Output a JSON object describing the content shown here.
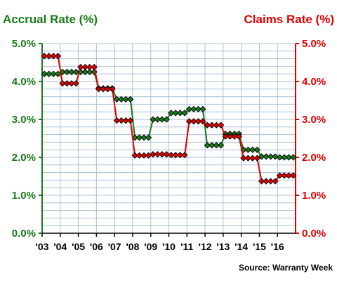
{
  "chart_data": {
    "type": "line",
    "title_left": "Accrual Rate (%)",
    "title_right": "Claims Rate (%)",
    "source": "Source: Warranty Week",
    "x_labels": [
      "'03",
      "'04",
      "'05",
      "'06",
      "'07",
      "'08",
      "'09",
      "'10",
      "'11",
      "'12",
      "'13",
      "'14",
      "'15",
      "'16"
    ],
    "y_ticks_left": [
      "0.0%",
      "1.0%",
      "2.0%",
      "3.0%",
      "4.0%",
      "5.0%"
    ],
    "y_ticks_right": [
      "0.0%",
      "1.0%",
      "2.0%",
      "3.0%",
      "4.0%",
      "5.0%"
    ],
    "ylim": [
      0,
      5
    ],
    "grid": true,
    "points_per_year": 4,
    "series": [
      {
        "name": "Accrual Rate (%)",
        "axis": "left",
        "color": "#1a7a1a",
        "values": [
          4.2,
          4.2,
          4.2,
          4.2,
          4.25,
          4.25,
          4.25,
          4.25,
          4.25,
          4.25,
          4.25,
          4.25,
          3.82,
          3.82,
          3.82,
          3.82,
          3.53,
          3.53,
          3.53,
          3.53,
          2.52,
          2.52,
          2.52,
          2.52,
          3.0,
          3.0,
          3.0,
          3.0,
          3.17,
          3.17,
          3.17,
          3.17,
          3.27,
          3.27,
          3.27,
          3.27,
          2.32,
          2.32,
          2.32,
          2.32,
          2.62,
          2.62,
          2.62,
          2.62,
          2.2,
          2.2,
          2.2,
          2.2,
          2.02,
          2.02,
          2.02,
          2.02,
          2.0,
          2.0,
          2.0,
          2.0
        ]
      },
      {
        "name": "Claims Rate (%)",
        "axis": "right",
        "color": "#e00000",
        "values": [
          4.67,
          4.67,
          4.67,
          4.67,
          3.95,
          3.95,
          3.95,
          3.95,
          4.38,
          4.38,
          4.38,
          4.38,
          3.8,
          3.8,
          3.8,
          3.8,
          2.97,
          2.97,
          2.97,
          2.97,
          2.05,
          2.05,
          2.05,
          2.05,
          2.08,
          2.08,
          2.08,
          2.08,
          2.06,
          2.06,
          2.06,
          2.06,
          2.95,
          2.95,
          2.95,
          2.95,
          2.85,
          2.85,
          2.85,
          2.85,
          2.55,
          2.55,
          2.55,
          2.55,
          1.98,
          1.98,
          1.98,
          1.98,
          1.37,
          1.37,
          1.37,
          1.37,
          1.52,
          1.52,
          1.52,
          1.52
        ]
      }
    ]
  },
  "colors": {
    "accrual": "#1a7a1a",
    "claims": "#e00000",
    "grid": "#a9bfd9",
    "axis_left": "#1a7a1a",
    "axis_right": "#e00000"
  }
}
